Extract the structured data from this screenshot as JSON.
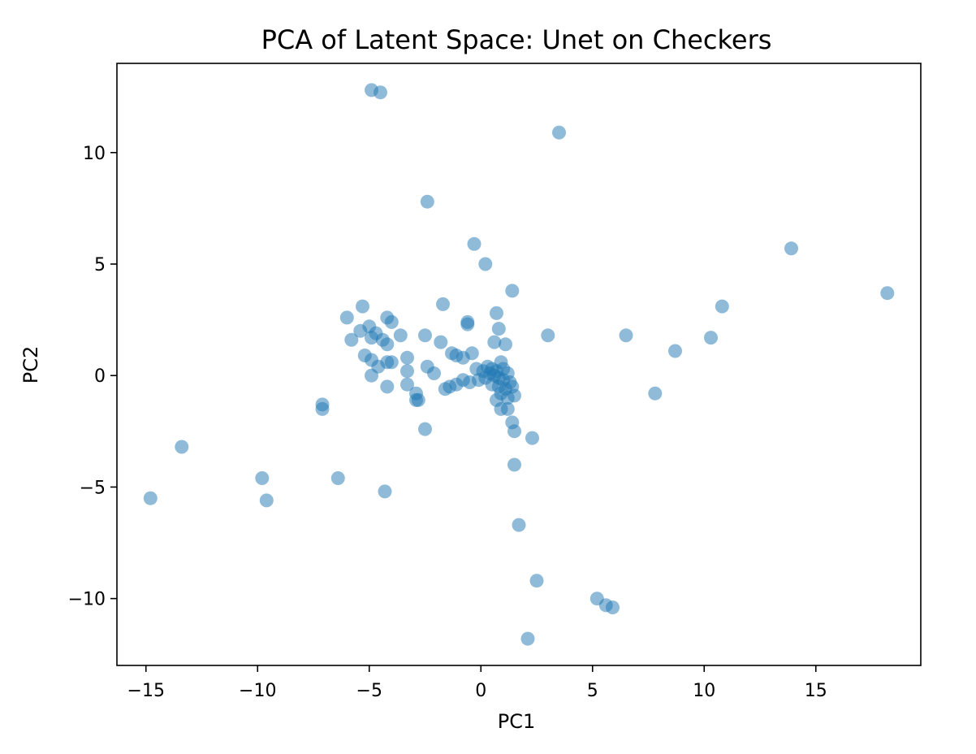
{
  "chart_data": {
    "type": "scatter",
    "title": "PCA of Latent Space: Unet on Checkers",
    "xlabel": "PC1",
    "ylabel": "PC2",
    "xlim": [
      -16.3,
      19.7
    ],
    "ylim": [
      -13.0,
      14.0
    ],
    "xticks": [
      -15,
      -10,
      -5,
      0,
      5,
      10,
      15
    ],
    "xtick_labels": [
      "−15",
      "−10",
      "−5",
      "0",
      "5",
      "10",
      "15"
    ],
    "yticks": [
      -10,
      -5,
      0,
      5,
      10
    ],
    "ytick_labels": [
      "−10",
      "−5",
      "0",
      "5",
      "10"
    ],
    "grid": false,
    "marker_color": "#1f77b4",
    "marker_alpha": 0.5,
    "series": [
      {
        "points": [
          [
            -4.9,
            12.8
          ],
          [
            -4.5,
            12.7
          ],
          [
            3.5,
            10.9
          ],
          [
            -2.4,
            7.8
          ],
          [
            -0.3,
            5.9
          ],
          [
            0.2,
            5.0
          ],
          [
            13.9,
            5.7
          ],
          [
            18.2,
            3.7
          ],
          [
            1.4,
            3.8
          ],
          [
            -1.7,
            3.2
          ],
          [
            0.7,
            2.8
          ],
          [
            10.8,
            3.1
          ],
          [
            -5.3,
            3.1
          ],
          [
            -6.0,
            2.6
          ],
          [
            -4.2,
            2.6
          ],
          [
            -4.0,
            2.4
          ],
          [
            -0.6,
            2.4
          ],
          [
            -0.6,
            2.3
          ],
          [
            0.8,
            2.1
          ],
          [
            -5.0,
            2.2
          ],
          [
            -4.7,
            1.9
          ],
          [
            -4.4,
            1.6
          ],
          [
            -5.4,
            2.0
          ],
          [
            -5.8,
            1.6
          ],
          [
            -4.9,
            1.7
          ],
          [
            -4.2,
            1.4
          ],
          [
            -3.6,
            1.8
          ],
          [
            -2.5,
            1.8
          ],
          [
            -1.8,
            1.5
          ],
          [
            3.0,
            1.8
          ],
          [
            6.5,
            1.8
          ],
          [
            10.3,
            1.7
          ],
          [
            0.6,
            1.5
          ],
          [
            1.1,
            1.4
          ],
          [
            8.7,
            1.1
          ],
          [
            -1.3,
            1.0
          ],
          [
            -1.1,
            0.9
          ],
          [
            -0.8,
            0.8
          ],
          [
            -0.4,
            1.0
          ],
          [
            -3.3,
            0.8
          ],
          [
            -5.2,
            0.9
          ],
          [
            -4.9,
            0.7
          ],
          [
            -4.2,
            0.6
          ],
          [
            -4.6,
            0.4
          ],
          [
            -4.0,
            0.6
          ],
          [
            -2.4,
            0.4
          ],
          [
            -3.3,
            0.2
          ],
          [
            -4.9,
            0.0
          ],
          [
            -2.1,
            0.1
          ],
          [
            -0.2,
            0.3
          ],
          [
            0.1,
            0.2
          ],
          [
            0.3,
            0.4
          ],
          [
            0.5,
            0.3
          ],
          [
            0.7,
            0.2
          ],
          [
            0.9,
            0.6
          ],
          [
            1.0,
            0.3
          ],
          [
            1.2,
            0.1
          ],
          [
            0.4,
            0.1
          ],
          [
            0.6,
            0.0
          ],
          [
            0.8,
            -0.1
          ],
          [
            1.0,
            -0.2
          ],
          [
            1.3,
            -0.3
          ],
          [
            0.2,
            -0.1
          ],
          [
            -0.1,
            -0.2
          ],
          [
            -0.5,
            -0.3
          ],
          [
            -0.8,
            -0.2
          ],
          [
            -1.1,
            -0.4
          ],
          [
            -1.4,
            -0.5
          ],
          [
            0.5,
            -0.4
          ],
          [
            0.8,
            -0.5
          ],
          [
            1.1,
            -0.6
          ],
          [
            1.4,
            -0.5
          ],
          [
            1.5,
            -0.9
          ],
          [
            0.9,
            -0.8
          ],
          [
            0.7,
            -1.1
          ],
          [
            1.2,
            -1.0
          ],
          [
            0.9,
            -1.5
          ],
          [
            1.2,
            -1.5
          ],
          [
            -3.3,
            -0.4
          ],
          [
            -4.2,
            -0.5
          ],
          [
            -1.6,
            -0.6
          ],
          [
            -2.9,
            -0.8
          ],
          [
            -2.9,
            -1.1
          ],
          [
            -2.8,
            -1.1
          ],
          [
            7.8,
            -0.8
          ],
          [
            -7.1,
            -1.3
          ],
          [
            -7.1,
            -1.5
          ],
          [
            1.4,
            -2.1
          ],
          [
            1.5,
            -2.5
          ],
          [
            2.3,
            -2.8
          ],
          [
            -2.5,
            -2.4
          ],
          [
            -13.4,
            -3.2
          ],
          [
            1.5,
            -4.0
          ],
          [
            -9.8,
            -4.6
          ],
          [
            -6.4,
            -4.6
          ],
          [
            -4.3,
            -5.2
          ],
          [
            -14.8,
            -5.5
          ],
          [
            -9.6,
            -5.6
          ],
          [
            1.7,
            -6.7
          ],
          [
            2.5,
            -9.2
          ],
          [
            5.2,
            -10.0
          ],
          [
            5.6,
            -10.3
          ],
          [
            5.9,
            -10.4
          ],
          [
            2.1,
            -11.8
          ]
        ]
      }
    ]
  }
}
